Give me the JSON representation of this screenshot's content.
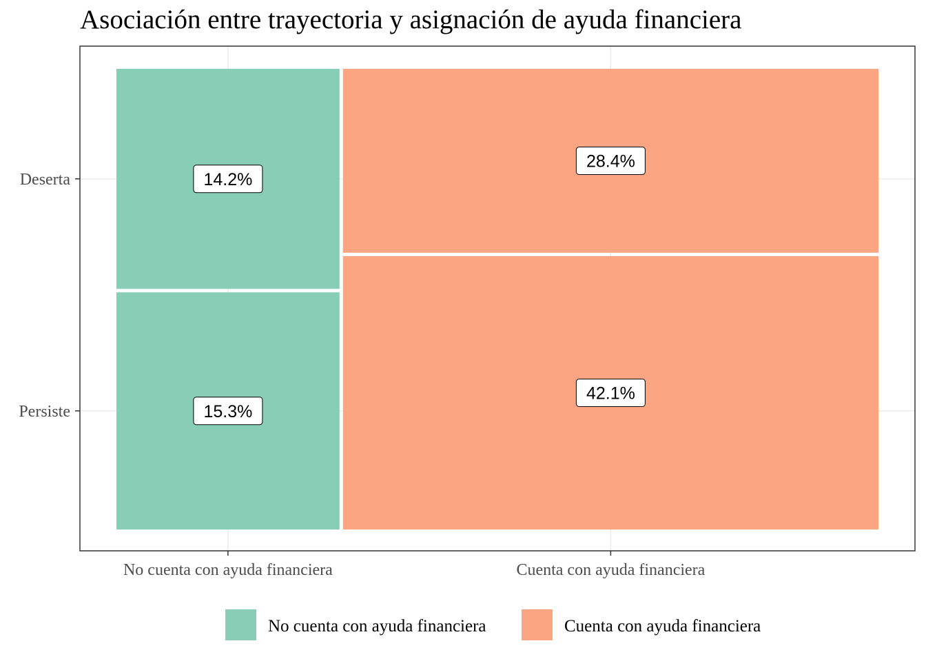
{
  "chart_data": {
    "type": "mosaic",
    "title": "Asociación entre trayectoria y asignación de ayuda financiera",
    "xlabel": "",
    "ylabel": "",
    "categories": [
      "No cuenta con ayuda financiera",
      "Cuenta con ayuda financiera"
    ],
    "rows": [
      "Deserta",
      "Persiste"
    ],
    "series": [
      {
        "name": "No cuenta con ayuda financiera",
        "color": "#88cdb6",
        "values": [
          14.2,
          15.3
        ],
        "labels": [
          "14.2%",
          "15.3%"
        ]
      },
      {
        "name": "Cuenta con ayuda financiera",
        "color": "#fca582",
        "values": [
          28.4,
          42.1
        ],
        "labels": [
          "28.4%",
          "42.1%"
        ]
      }
    ],
    "grid": true,
    "legend": "bottom"
  }
}
